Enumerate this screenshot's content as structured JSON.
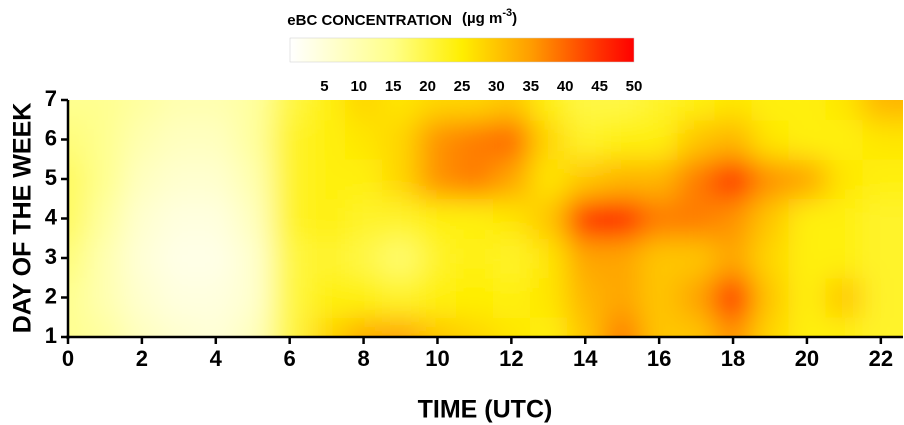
{
  "chart_data": {
    "type": "heatmap",
    "colorbar_label": "eBC CONCENTRATION",
    "colorbar_unit": [
      "(µg m",
      "-3",
      ")"
    ],
    "xlabel": "TIME (UTC)",
    "ylabel": "DAY OF THE WEEK",
    "x": [
      0,
      1,
      2,
      3,
      4,
      5,
      6,
      7,
      8,
      9,
      10,
      11,
      12,
      13,
      14,
      15,
      16,
      17,
      18,
      19,
      20,
      21,
      22
    ],
    "y": [
      1,
      2,
      3,
      4,
      5,
      6,
      7
    ],
    "z": [
      [
        14,
        12,
        8,
        6,
        5,
        8,
        20,
        28,
        33,
        34,
        30,
        28,
        26,
        24,
        30,
        38,
        30,
        30,
        36,
        28,
        24,
        24,
        22
      ],
      [
        14,
        10,
        6,
        4,
        4,
        6,
        20,
        24,
        24,
        22,
        24,
        25,
        24,
        26,
        32,
        34,
        30,
        34,
        46,
        30,
        24,
        30,
        22
      ],
      [
        16,
        10,
        5,
        3,
        3,
        6,
        20,
        22,
        20,
        17,
        22,
        24,
        22,
        26,
        34,
        34,
        30,
        30,
        34,
        28,
        24,
        24,
        22
      ],
      [
        18,
        12,
        6,
        4,
        4,
        8,
        22,
        24,
        22,
        22,
        24,
        24,
        26,
        30,
        46,
        48,
        38,
        38,
        36,
        30,
        24,
        24,
        22
      ],
      [
        18,
        14,
        8,
        6,
        6,
        10,
        22,
        24,
        24,
        28,
        36,
        38,
        34,
        26,
        30,
        32,
        32,
        38,
        46,
        36,
        34,
        26,
        24
      ],
      [
        16,
        14,
        10,
        8,
        8,
        12,
        22,
        24,
        26,
        28,
        36,
        38,
        40,
        28,
        22,
        24,
        24,
        30,
        32,
        26,
        24,
        24,
        26
      ],
      [
        14,
        14,
        12,
        10,
        10,
        12,
        20,
        24,
        28,
        26,
        28,
        28,
        30,
        24,
        20,
        20,
        22,
        24,
        26,
        24,
        24,
        26,
        32
      ]
    ],
    "xlim": [
      0,
      22.6
    ],
    "xticks": [
      0,
      2,
      4,
      6,
      8,
      10,
      12,
      14,
      16,
      18,
      20,
      22
    ],
    "ylim": [
      1,
      7
    ],
    "yticks": [
      1,
      2,
      3,
      4,
      5,
      6,
      7
    ],
    "clim": [
      0,
      50
    ],
    "colorbar_ticks": [
      5,
      10,
      15,
      20,
      25,
      30,
      35,
      40,
      45,
      50
    ],
    "colorscale": [
      [
        0,
        "#ffffff"
      ],
      [
        15,
        "#ffff88"
      ],
      [
        25,
        "#ffee00"
      ],
      [
        35,
        "#ff9d00"
      ],
      [
        45,
        "#ff3000"
      ],
      [
        50,
        "#ff0000"
      ]
    ]
  }
}
